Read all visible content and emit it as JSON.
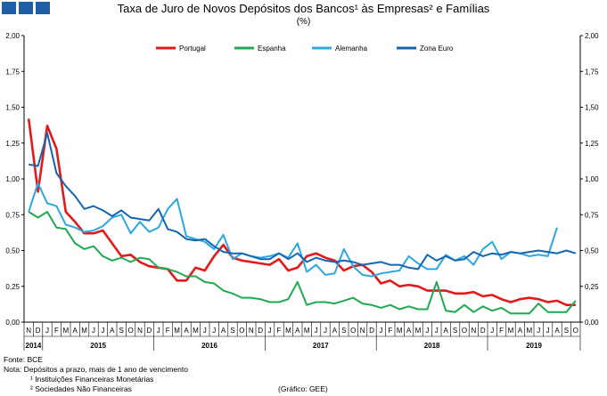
{
  "header": {
    "title": "Taxa de Juro de Novos Depósitos dos Bancos¹ às Empresas² e Famílias",
    "subtitle": "(%)"
  },
  "notes": {
    "source": "Fonte: BCE",
    "note": "Nota: Depósitos a prazo, mais de 1 ano de vencimento",
    "footnote1": "¹ Instituições Financeiras Monetárias",
    "footnote2": "² Sociedades Não Financeiras",
    "credit": "(Gráfico: GEE)"
  },
  "colors": {
    "Portugal": "#e3191b",
    "Espanha": "#20a852",
    "Alemanha": "#2ba8e0",
    "Zona Euro": "#1565b0"
  },
  "chart_data": {
    "type": "line",
    "title": "Taxa de Juro de Novos Depósitos dos Bancos¹ às Empresas² e Famílias",
    "subtitle": "(%)",
    "xlabel": "",
    "ylabel": "",
    "ylim": [
      0,
      2
    ],
    "yticks": [
      "0,00",
      "0,25",
      "0,50",
      "0,75",
      "1,00",
      "1,25",
      "1,50",
      "1,75",
      "2,00"
    ],
    "grid": false,
    "legend": "top",
    "x": [
      "N",
      "D",
      "J",
      "F",
      "M",
      "A",
      "M",
      "J",
      "J",
      "A",
      "S",
      "O",
      "N",
      "D",
      "J",
      "F",
      "M",
      "A",
      "M",
      "J",
      "J",
      "A",
      "S",
      "O",
      "N",
      "D",
      "J",
      "F",
      "M",
      "A",
      "M",
      "J",
      "J",
      "A",
      "S",
      "O",
      "N",
      "D",
      "J",
      "F",
      "M",
      "A",
      "M",
      "J",
      "J",
      "A",
      "S",
      "O",
      "N",
      "D",
      "J",
      "F",
      "M",
      "A",
      "M",
      "J",
      "J",
      "A",
      "S",
      "O"
    ],
    "years": [
      {
        "label": "2014",
        "start": 0,
        "end": 1
      },
      {
        "label": "2015",
        "start": 2,
        "end": 13
      },
      {
        "label": "2016",
        "start": 14,
        "end": 25
      },
      {
        "label": "2017",
        "start": 26,
        "end": 37
      },
      {
        "label": "2018",
        "start": 38,
        "end": 49
      },
      {
        "label": "2019",
        "start": 50,
        "end": 59
      }
    ],
    "series": [
      {
        "name": "Portugal",
        "values": [
          1.42,
          0.91,
          1.37,
          1.21,
          0.77,
          0.7,
          0.62,
          0.62,
          0.64,
          0.55,
          0.46,
          0.47,
          0.42,
          0.39,
          0.38,
          0.37,
          0.29,
          0.29,
          0.38,
          0.36,
          0.46,
          0.54,
          0.45,
          0.43,
          0.42,
          0.41,
          0.4,
          0.44,
          0.36,
          0.38,
          0.46,
          0.48,
          0.45,
          0.43,
          0.36,
          0.39,
          0.4,
          0.35,
          0.27,
          0.29,
          0.25,
          0.26,
          0.25,
          0.22,
          0.22,
          0.22,
          0.2,
          0.2,
          0.21,
          0.18,
          0.19,
          0.16,
          0.14,
          0.16,
          0.17,
          0.16,
          0.14,
          0.15,
          0.12,
          0.12
        ]
      },
      {
        "name": "Espanha",
        "values": [
          0.77,
          0.73,
          0.77,
          0.66,
          0.65,
          0.55,
          0.51,
          0.53,
          0.46,
          0.43,
          0.45,
          0.42,
          0.45,
          0.44,
          0.38,
          0.37,
          0.35,
          0.32,
          0.32,
          0.28,
          0.27,
          0.22,
          0.2,
          0.17,
          0.17,
          0.16,
          0.14,
          0.14,
          0.16,
          0.28,
          0.12,
          0.14,
          0.14,
          0.13,
          0.15,
          0.17,
          0.13,
          0.12,
          0.1,
          0.12,
          0.09,
          0.11,
          0.09,
          0.09,
          0.28,
          0.08,
          0.07,
          0.12,
          0.07,
          0.11,
          0.08,
          0.1,
          0.06,
          0.06,
          0.06,
          0.13,
          0.07,
          0.07,
          0.07,
          0.15
        ]
      },
      {
        "name": "Alemanha",
        "values": [
          0.77,
          0.97,
          0.83,
          0.81,
          0.68,
          0.66,
          0.63,
          0.64,
          0.67,
          0.73,
          0.75,
          0.62,
          0.7,
          0.63,
          0.66,
          0.79,
          0.86,
          0.6,
          0.58,
          0.56,
          0.51,
          0.61,
          0.44,
          0.48,
          0.46,
          0.45,
          0.46,
          0.48,
          0.45,
          0.55,
          0.35,
          0.4,
          0.33,
          0.34,
          0.51,
          0.39,
          0.33,
          0.32,
          0.34,
          0.35,
          0.36,
          0.46,
          0.41,
          0.37,
          0.37,
          0.47,
          0.43,
          0.46,
          0.4,
          0.51,
          0.56,
          0.44,
          0.49,
          0.48,
          0.46,
          0.47,
          0.46,
          0.66,
          null,
          null
        ]
      },
      {
        "name": "Zona Euro",
        "values": [
          1.1,
          1.09,
          1.32,
          1.04,
          0.95,
          0.88,
          0.79,
          0.81,
          0.78,
          0.74,
          0.78,
          0.73,
          0.72,
          0.71,
          0.79,
          0.65,
          0.63,
          0.58,
          0.57,
          0.58,
          0.53,
          0.49,
          0.48,
          0.48,
          0.46,
          0.44,
          0.44,
          0.48,
          0.44,
          0.48,
          0.42,
          0.45,
          0.43,
          0.42,
          0.43,
          0.42,
          0.4,
          0.41,
          0.42,
          0.4,
          0.4,
          0.38,
          0.37,
          0.47,
          0.43,
          0.46,
          0.43,
          0.44,
          0.49,
          0.46,
          0.48,
          0.47,
          0.49,
          0.48,
          0.49,
          0.5,
          0.49,
          0.48,
          0.5,
          0.48
        ]
      }
    ]
  }
}
